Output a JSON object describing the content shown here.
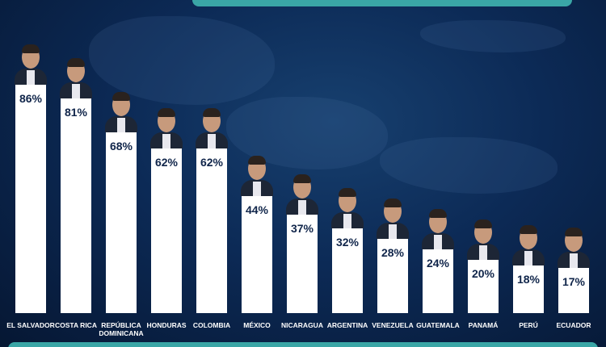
{
  "chart_data": {
    "type": "bar",
    "categories": [
      "EL SALVADOR",
      "COSTA RICA",
      "REPÚBLICA DOMINICANA",
      "HONDURAS",
      "COLOMBIA",
      "MÉXICO",
      "NICARAGUA",
      "ARGENTINA",
      "VENEZUELA",
      "GUATEMALA",
      "PANAMÁ",
      "PERÚ",
      "ECUADOR"
    ],
    "values": [
      86,
      81,
      68,
      62,
      62,
      44,
      37,
      32,
      28,
      24,
      20,
      18,
      17
    ],
    "value_labels": [
      "86%",
      "81%",
      "68%",
      "62%",
      "62%",
      "44%",
      "37%",
      "32%",
      "28%",
      "24%",
      "20%",
      "18%",
      "17%"
    ],
    "color": "#ffffff"
  }
}
